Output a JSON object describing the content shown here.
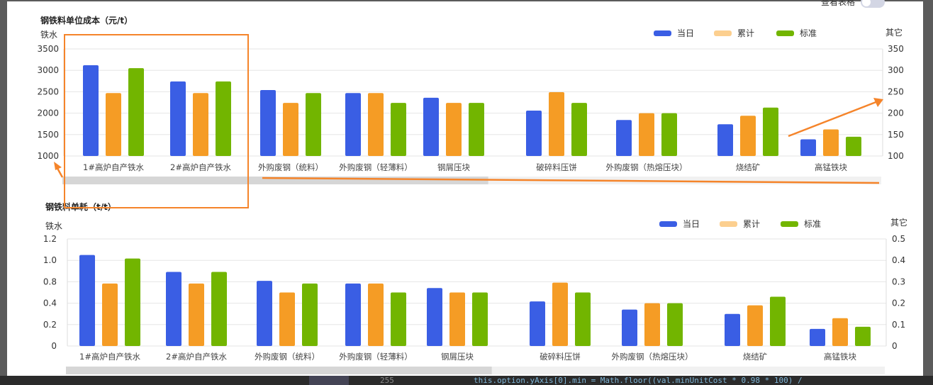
{
  "toolbar": {
    "view_table_label": "查看表格",
    "view_table_on": false
  },
  "colors": {
    "current": "#3a5ee4",
    "cumulative": "#f59c25",
    "cumulative_legend": "#fccf8f",
    "standard": "#72b500",
    "annotation": "#f5842a"
  },
  "chart_data": [
    {
      "type": "bar",
      "title": "钢铁料单位成本（元/t）",
      "ylabel": "铁水",
      "y2label": "其它",
      "ylim": [
        1000,
        3500
      ],
      "yticks": [
        "3500",
        "3000",
        "2500",
        "2000",
        "1500",
        "1000"
      ],
      "y2lim": [
        100,
        350
      ],
      "y2ticks": [
        "350",
        "300",
        "250",
        "200",
        "150",
        "100"
      ],
      "legend": [
        "当日",
        "累计",
        "标准"
      ],
      "legend_position": "top-right",
      "grid": true,
      "categories": [
        "1#高炉自产铁水",
        "2#高炉自产铁水",
        "外购废钢（统料）",
        "外购废钢（轻薄料）",
        "钢屑压块",
        "破碎料压饼",
        "外购废钢（热熔压块）",
        "烧结矿",
        "高锰铁块"
      ],
      "axis_of_category": [
        "left",
        "left",
        "left",
        "left",
        "left",
        "left",
        "right",
        "right",
        "right"
      ],
      "series": [
        {
          "name": "当日",
          "values": [
            3120,
            2740,
            2540,
            2470,
            2360,
            2060,
            184,
            174,
            139
          ]
        },
        {
          "name": "累计",
          "values": [
            2470,
            2470,
            2240,
            2470,
            2240,
            2490,
            200,
            194,
            162
          ]
        },
        {
          "name": "标准",
          "values": [
            3050,
            2740,
            2470,
            2240,
            2240,
            2240,
            200,
            213,
            145
          ]
        }
      ],
      "scroll_fraction": 0.52
    },
    {
      "type": "bar",
      "title": "钢铁料单耗（t/t）",
      "ylabel": "铁水",
      "y2label": "其它",
      "ylim": [
        0,
        1.2
      ],
      "yticks": [
        "1.2",
        "1.0",
        "0.8",
        "0.4",
        "0.2",
        "0"
      ],
      "y2lim": [
        0,
        0.5
      ],
      "y2ticks": [
        "0.5",
        "0.4",
        "0.3",
        "0.2",
        "0.1",
        "0"
      ],
      "legend": [
        "当日",
        "累计",
        "标准"
      ],
      "legend_position": "top-right",
      "grid": true,
      "categories": [
        "1#高炉自产铁水",
        "2#高炉自产铁水",
        "外购废钢（统料）",
        "外购废钢（轻薄料）",
        "钢屑压块",
        "破碎料压饼",
        "外购废钢（热熔压块）",
        "烧结矿",
        "高锰铁块"
      ],
      "axis_of_category": [
        "left",
        "left",
        "left",
        "left",
        "left",
        "left",
        "right",
        "right",
        "right"
      ],
      "series": [
        {
          "name": "当日",
          "values": [
            1.02,
            0.83,
            0.73,
            0.7,
            0.65,
            0.5,
            0.17,
            0.15,
            0.08
          ]
        },
        {
          "name": "累计",
          "values": [
            0.7,
            0.7,
            0.6,
            0.7,
            0.6,
            0.71,
            0.2,
            0.19,
            0.13
          ]
        },
        {
          "name": "标准",
          "values": [
            0.98,
            0.83,
            0.7,
            0.6,
            0.6,
            0.6,
            0.2,
            0.23,
            0.09
          ]
        }
      ],
      "scroll_fraction": 0.52
    }
  ],
  "statusbar": {
    "line_number": "255",
    "code": "this.option.yAxis[0].min = Math.floor((val.minUnitCost * 0.98 * 100) / "
  }
}
